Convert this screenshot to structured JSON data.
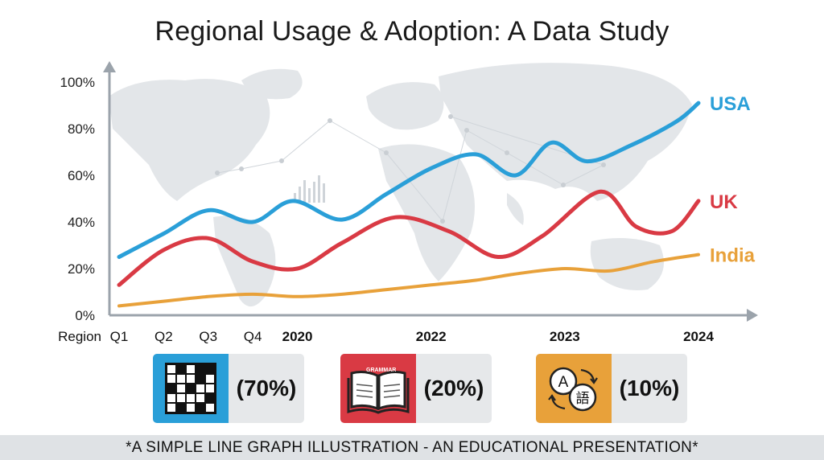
{
  "title": "Regional Usage & Adoption: A Data Study",
  "footer": "*A SIMPLE LINE GRAPH ILLUSTRATION - AN EDUCATIONAL PRESENTATION*",
  "colors": {
    "usa": "#2a9fd8",
    "uk": "#d93a44",
    "india": "#e8a13a",
    "axis": "#9ba3ab",
    "map": "#e3e6e9"
  },
  "chart_data": {
    "type": "line",
    "title": "Regional Usage & Adoption: A Data Study",
    "xlabel": "Region",
    "ylabel": "",
    "ylim": [
      0,
      100
    ],
    "yticks": [
      "0%",
      "20%",
      "40%",
      "60%",
      "80%",
      "100%"
    ],
    "x_tick_labels": [
      "Q1",
      "Q2",
      "Q3",
      "Q4",
      "2020",
      "2022",
      "2023",
      "2024"
    ],
    "x_tick_positions": [
      0,
      1,
      2,
      3,
      4,
      7,
      10,
      13
    ],
    "x_tick_bold": [
      false,
      false,
      false,
      false,
      true,
      true,
      true,
      true
    ],
    "x_range": [
      0,
      13
    ],
    "grid": false,
    "legend": "inline-right",
    "series": [
      {
        "name": "USA",
        "color_key": "usa",
        "x": [
          0,
          1,
          2,
          3,
          3.9,
          5,
          6,
          7,
          8,
          8.9,
          9.7,
          10.5,
          11.5,
          12.5,
          13
        ],
        "values": [
          25,
          35,
          45,
          40,
          49,
          41,
          52,
          63,
          69,
          60,
          74,
          66,
          73,
          83,
          91
        ]
      },
      {
        "name": "UK",
        "color_key": "uk",
        "x": [
          0,
          1,
          2,
          3,
          4,
          5,
          6.2,
          7.4,
          8.5,
          9.5,
          10.8,
          11.6,
          12.4,
          13
        ],
        "values": [
          13,
          28,
          33,
          23,
          20,
          31,
          42,
          36,
          25,
          34,
          53,
          38,
          36,
          49
        ]
      },
      {
        "name": "India",
        "color_key": "india",
        "x": [
          0,
          1,
          2,
          3,
          4,
          5,
          6,
          7,
          8,
          9,
          10,
          11,
          12,
          13
        ],
        "values": [
          4,
          6,
          8,
          9,
          8,
          9,
          11,
          13,
          15,
          18,
          20,
          19,
          23,
          26
        ]
      }
    ]
  },
  "cards": [
    {
      "value": "(70%)",
      "color_key": "usa",
      "icon": "crossword-icon"
    },
    {
      "value": "(20%)",
      "color_key": "uk",
      "icon": "grammar-book-icon",
      "icon_text": "GRAMMAR"
    },
    {
      "value": "(10%)",
      "color_key": "india",
      "icon": "translate-icon",
      "icon_text_a": "A",
      "icon_text_b": "語"
    }
  ]
}
